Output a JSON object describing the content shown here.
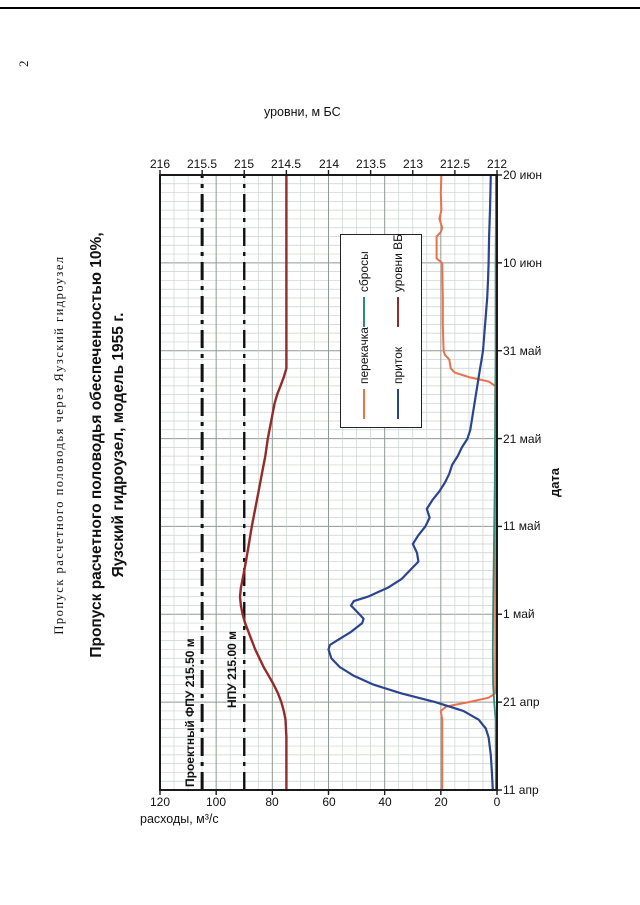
{
  "page": {
    "number": "2",
    "header": "Пропуск расчетного половодья через Яузский гидроузел"
  },
  "title": {
    "line1": "Пропуск расчетного половодья обеспеченностью 10%,",
    "line2": "Яузский гидроузел, модель 1955 г."
  },
  "colors": {
    "grid_minor": "#ccd2ce",
    "grid_major": "#8f9a94",
    "axis": "#1a1a1a",
    "reference_line": "#111111"
  },
  "chart_data": {
    "type": "line",
    "title": "Пропуск расчетного половодья обеспеченностью 10%, Яузский гидроузел, модель 1955 г.",
    "x_axis": {
      "label": "дата",
      "range_days": [
        0,
        70
      ],
      "tick_days": [
        0,
        10,
        20,
        30,
        40,
        50,
        60,
        70
      ],
      "tick_labels": [
        "11 апр",
        "21 апр",
        "1 май",
        "11 май",
        "21 май",
        "31 май",
        "10 июн",
        "20 июн"
      ],
      "minor_grid_step_days": 1
    },
    "y_left": {
      "label": "расходы, м³/с",
      "range": [
        0,
        120
      ],
      "ticks": [
        0,
        20,
        40,
        60,
        80,
        100,
        120
      ],
      "tick_labels": [
        "0",
        "20",
        "40",
        "60",
        "80",
        "100",
        "120"
      ],
      "minor_grid_step": 5
    },
    "y_right": {
      "label": "уровни, м БС",
      "range": [
        212,
        216
      ],
      "ticks": [
        212,
        212.5,
        213,
        213.5,
        214,
        214.5,
        215,
        215.5,
        216
      ],
      "tick_labels": [
        "212",
        "212.5",
        "213",
        "213.5",
        "214",
        "214.5",
        "215",
        "215.5",
        "216"
      ]
    },
    "reference_lines": [
      {
        "label": "Проектный ФПУ 215.50 м",
        "level": 215.5
      },
      {
        "label": "НПУ 215.00 м",
        "level": 215.0
      }
    ],
    "legend": {
      "rows": [
        [
          "перекачка",
          "сбросы"
        ],
        [
          "приток",
          "уровни ВБ"
        ]
      ]
    },
    "series": [
      {
        "name": "перекачка",
        "axis": "left",
        "color": "#E8714E",
        "width": 2,
        "points": [
          [
            0,
            19.5
          ],
          [
            8,
            19.5
          ],
          [
            9,
            20
          ],
          [
            9.5,
            18
          ],
          [
            10,
            10
          ],
          [
            10.5,
            3
          ],
          [
            11,
            0.6
          ],
          [
            46,
            0.6
          ],
          [
            46.5,
            3
          ],
          [
            47,
            10
          ],
          [
            47.5,
            15
          ],
          [
            48,
            16.5
          ],
          [
            49,
            17
          ],
          [
            49.5,
            18.5
          ],
          [
            50,
            19
          ],
          [
            53,
            19.3
          ],
          [
            56,
            19.3
          ],
          [
            60,
            19.5
          ],
          [
            60.5,
            21.5
          ],
          [
            63,
            21.5
          ],
          [
            63.5,
            20
          ],
          [
            64,
            19.5
          ],
          [
            65,
            20.5
          ],
          [
            66,
            19.8
          ],
          [
            68,
            20
          ],
          [
            70,
            19.8
          ]
        ]
      },
      {
        "name": "сбросы",
        "axis": "left",
        "color": "#2E8B74",
        "width": 1.8,
        "points": [
          [
            0,
            0.4
          ],
          [
            8,
            0.5
          ],
          [
            10,
            1
          ],
          [
            12,
            1.4
          ],
          [
            16,
            1.5
          ],
          [
            20,
            1.4
          ],
          [
            25,
            1.2
          ],
          [
            30,
            1
          ],
          [
            35,
            0.8
          ],
          [
            40,
            0.7
          ],
          [
            45,
            0.6
          ],
          [
            50,
            0.5
          ],
          [
            55,
            0.5
          ],
          [
            60,
            0.5
          ],
          [
            65,
            0.4
          ],
          [
            70,
            0.4
          ]
        ]
      },
      {
        "name": "приток",
        "axis": "left",
        "color": "#2B4490",
        "width": 2.2,
        "points": [
          [
            0,
            1.5
          ],
          [
            2,
            1.8
          ],
          [
            4,
            2.2
          ],
          [
            6,
            3
          ],
          [
            7,
            4
          ],
          [
            8,
            6.5
          ],
          [
            9,
            12
          ],
          [
            10,
            22
          ],
          [
            11,
            34
          ],
          [
            12,
            44
          ],
          [
            13,
            51
          ],
          [
            14,
            56
          ],
          [
            15,
            59
          ],
          [
            16,
            60
          ],
          [
            16.5,
            59.5
          ],
          [
            17,
            57
          ],
          [
            18,
            52
          ],
          [
            19,
            48
          ],
          [
            19.5,
            47.5
          ],
          [
            20,
            49
          ],
          [
            21,
            52
          ],
          [
            21.5,
            51
          ],
          [
            22,
            46
          ],
          [
            23,
            39
          ],
          [
            24,
            34
          ],
          [
            25,
            31
          ],
          [
            26,
            28
          ],
          [
            27,
            28.5
          ],
          [
            28,
            30
          ],
          [
            29,
            28
          ],
          [
            30,
            25.5
          ],
          [
            31,
            24
          ],
          [
            31.5,
            24.5
          ],
          [
            32,
            25
          ],
          [
            33,
            23
          ],
          [
            34,
            20.5
          ],
          [
            35,
            18.5
          ],
          [
            36,
            17
          ],
          [
            37,
            16
          ],
          [
            38,
            14
          ],
          [
            39,
            12.5
          ],
          [
            40,
            10.5
          ],
          [
            41,
            9.5
          ],
          [
            42,
            9
          ],
          [
            43,
            8.5
          ],
          [
            44,
            8
          ],
          [
            45,
            7.5
          ],
          [
            46,
            7
          ],
          [
            47,
            6.5
          ],
          [
            48,
            6
          ],
          [
            49,
            5.5
          ],
          [
            50,
            5
          ],
          [
            52,
            4.5
          ],
          [
            54,
            4
          ],
          [
            56,
            3.5
          ],
          [
            58,
            3.2
          ],
          [
            60,
            3
          ],
          [
            63,
            2.8
          ],
          [
            66,
            2.5
          ],
          [
            70,
            2.2
          ]
        ]
      },
      {
        "name": "уровни ВБ",
        "axis": "right",
        "color": "#942B2B",
        "width": 2.4,
        "points": [
          [
            0,
            214.5
          ],
          [
            4,
            214.5
          ],
          [
            6,
            214.5
          ],
          [
            8,
            214.51
          ],
          [
            9,
            214.53
          ],
          [
            10,
            214.56
          ],
          [
            11,
            214.6
          ],
          [
            12,
            214.65
          ],
          [
            13,
            214.71
          ],
          [
            14,
            214.77
          ],
          [
            15,
            214.82
          ],
          [
            16,
            214.87
          ],
          [
            17,
            214.91
          ],
          [
            18,
            214.95
          ],
          [
            19,
            214.99
          ],
          [
            20,
            215.02
          ],
          [
            21,
            215.04
          ],
          [
            22,
            215.05
          ],
          [
            23,
            215.04
          ],
          [
            24,
            215.02
          ],
          [
            25,
            215.0
          ],
          [
            26,
            214.98
          ],
          [
            28,
            214.945
          ],
          [
            30,
            214.91
          ],
          [
            32,
            214.87
          ],
          [
            34,
            214.83
          ],
          [
            36,
            214.79
          ],
          [
            38,
            214.75
          ],
          [
            40,
            214.72
          ],
          [
            42,
            214.68
          ],
          [
            44,
            214.64
          ],
          [
            45,
            214.61
          ],
          [
            46,
            214.57
          ],
          [
            47,
            214.53
          ],
          [
            48,
            214.5
          ],
          [
            50,
            214.5
          ],
          [
            55,
            214.5
          ],
          [
            60,
            214.5
          ],
          [
            65,
            214.5
          ],
          [
            70,
            214.5
          ]
        ]
      }
    ]
  }
}
